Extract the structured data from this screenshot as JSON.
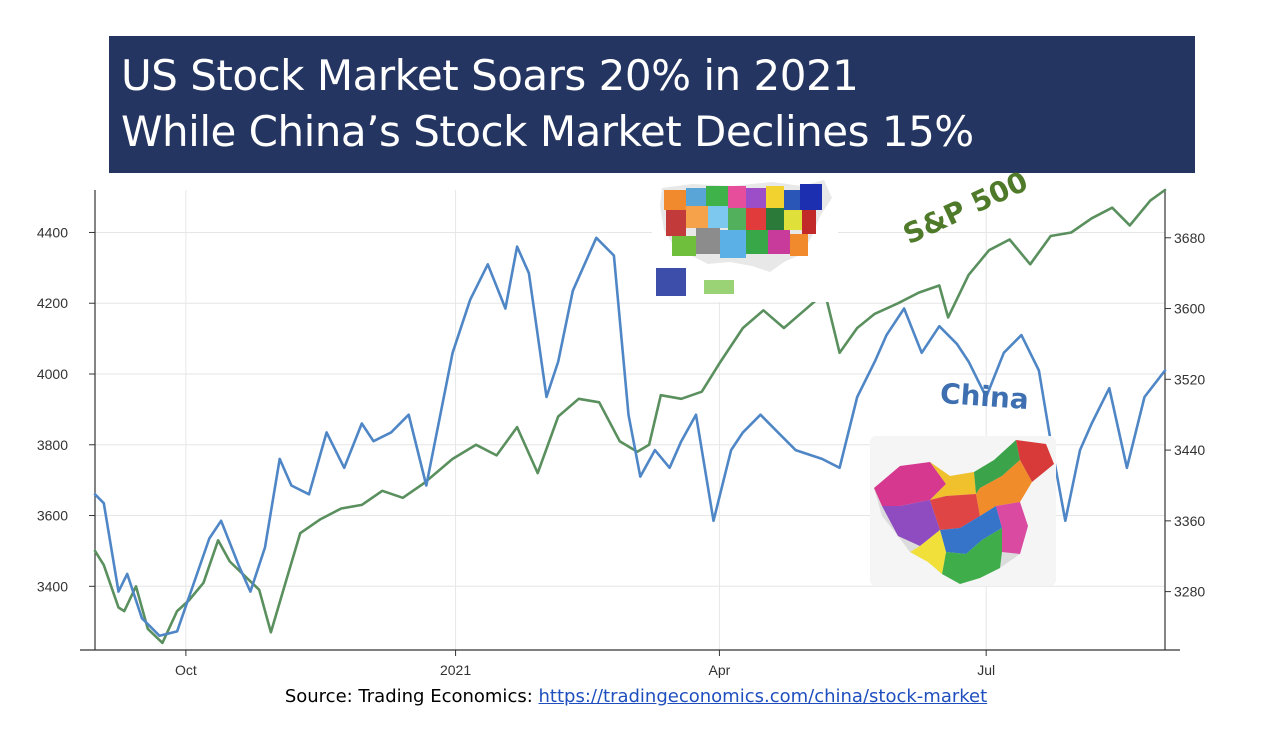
{
  "title": {
    "line1": "US Stock Market Soars 20% in 2021",
    "line2": "While China’s Stock Market Declines 15%"
  },
  "colors": {
    "banner": "#253561",
    "sp500": "#5a8f5e",
    "china": "#4f86c6",
    "sp500_label": "#4f7a2a",
    "china_label": "#3e6fb0"
  },
  "annotations": {
    "sp500_label": "S&P 500",
    "china_label": "China"
  },
  "images": {
    "us_map_icon": "us-states-map",
    "china_map_icon": "china-provinces-map"
  },
  "source": {
    "prefix": "Source: Trading Economics: ",
    "link_text": "https://tradingeconomics.com/china/stock-market"
  },
  "chart_data": {
    "type": "line",
    "title": "",
    "xlabel": "",
    "ylabel": "",
    "x_ticks": [
      "Oct",
      "2021",
      "Apr",
      "Jul"
    ],
    "y_left_ticks": [
      3400,
      3600,
      3800,
      4000,
      4200,
      4400
    ],
    "y_left_lim": [
      3220,
      4520
    ],
    "y_right_ticks": [
      3280,
      3360,
      3440,
      3520,
      3600,
      3680
    ],
    "y_right_lim": [
      3214,
      3734
    ],
    "grid": true,
    "series": [
      {
        "name": "S&P 500",
        "axis": "left",
        "dates": [
          "2020-08-31",
          "2020-09-03",
          "2020-09-08",
          "2020-09-10",
          "2020-09-14",
          "2020-09-18",
          "2020-09-23",
          "2020-09-28",
          "2020-10-02",
          "2020-10-07",
          "2020-10-12",
          "2020-10-16",
          "2020-10-21",
          "2020-10-26",
          "2020-10-30",
          "2020-11-04",
          "2020-11-09",
          "2020-11-16",
          "2020-11-23",
          "2020-11-30",
          "2020-12-07",
          "2020-12-14",
          "2020-12-21",
          "2020-12-31",
          "2021-01-08",
          "2021-01-15",
          "2021-01-22",
          "2021-01-29",
          "2021-02-05",
          "2021-02-12",
          "2021-02-19",
          "2021-02-26",
          "2021-03-04",
          "2021-03-08",
          "2021-03-12",
          "2021-03-19",
          "2021-03-26",
          "2021-04-01",
          "2021-04-09",
          "2021-04-16",
          "2021-04-23",
          "2021-04-30",
          "2021-05-07",
          "2021-05-12",
          "2021-05-18",
          "2021-05-24",
          "2021-06-01",
          "2021-06-08",
          "2021-06-15",
          "2021-06-18",
          "2021-06-25",
          "2021-07-02",
          "2021-07-09",
          "2021-07-16",
          "2021-07-23",
          "2021-07-30",
          "2021-08-06",
          "2021-08-13",
          "2021-08-19",
          "2021-08-26",
          "2021-08-31"
        ],
        "values": [
          3500,
          3460,
          3340,
          3330,
          3400,
          3280,
          3240,
          3330,
          3360,
          3410,
          3530,
          3470,
          3430,
          3390,
          3270,
          3410,
          3550,
          3590,
          3620,
          3630,
          3670,
          3650,
          3690,
          3760,
          3800,
          3770,
          3850,
          3720,
          3880,
          3930,
          3920,
          3810,
          3780,
          3800,
          3940,
          3930,
          3950,
          4030,
          4130,
          4180,
          4130,
          4180,
          4230,
          4060,
          4130,
          4170,
          4200,
          4230,
          4250,
          4160,
          4280,
          4350,
          4380,
          4310,
          4390,
          4400,
          4440,
          4470,
          4420,
          4490,
          4520
        ]
      },
      {
        "name": "China",
        "axis": "right",
        "dates": [
          "2020-08-31",
          "2020-09-03",
          "2020-09-08",
          "2020-09-11",
          "2020-09-16",
          "2020-09-22",
          "2020-09-28",
          "2020-10-09",
          "2020-10-13",
          "2020-10-19",
          "2020-10-23",
          "2020-10-28",
          "2020-11-02",
          "2020-11-06",
          "2020-11-12",
          "2020-11-18",
          "2020-11-24",
          "2020-11-30",
          "2020-12-04",
          "2020-12-10",
          "2020-12-16",
          "2020-12-22",
          "2020-12-31",
          "2021-01-06",
          "2021-01-12",
          "2021-01-18",
          "2021-01-22",
          "2021-01-26",
          "2021-02-01",
          "2021-02-05",
          "2021-02-10",
          "2021-02-18",
          "2021-02-24",
          "2021-03-01",
          "2021-03-05",
          "2021-03-10",
          "2021-03-15",
          "2021-03-19",
          "2021-03-24",
          "2021-03-30",
          "2021-04-05",
          "2021-04-09",
          "2021-04-15",
          "2021-04-21",
          "2021-04-27",
          "2021-05-06",
          "2021-05-12",
          "2021-05-18",
          "2021-05-24",
          "2021-05-28",
          "2021-06-03",
          "2021-06-09",
          "2021-06-15",
          "2021-06-21",
          "2021-06-25",
          "2021-07-01",
          "2021-07-07",
          "2021-07-13",
          "2021-07-19",
          "2021-07-23",
          "2021-07-28",
          "2021-08-02",
          "2021-08-06",
          "2021-08-12",
          "2021-08-18",
          "2021-08-24",
          "2021-08-31"
        ],
        "values": [
          3390,
          3380,
          3280,
          3300,
          3250,
          3230,
          3235,
          3340,
          3360,
          3310,
          3280,
          3330,
          3430,
          3400,
          3390,
          3460,
          3420,
          3470,
          3450,
          3460,
          3480,
          3400,
          3550,
          3610,
          3650,
          3600,
          3670,
          3640,
          3500,
          3540,
          3620,
          3680,
          3660,
          3480,
          3410,
          3440,
          3420,
          3450,
          3480,
          3360,
          3440,
          3460,
          3480,
          3460,
          3440,
          3430,
          3420,
          3500,
          3540,
          3570,
          3600,
          3550,
          3580,
          3560,
          3540,
          3500,
          3550,
          3570,
          3530,
          3450,
          3360,
          3440,
          3470,
          3510,
          3420,
          3500,
          3530
        ]
      }
    ]
  }
}
